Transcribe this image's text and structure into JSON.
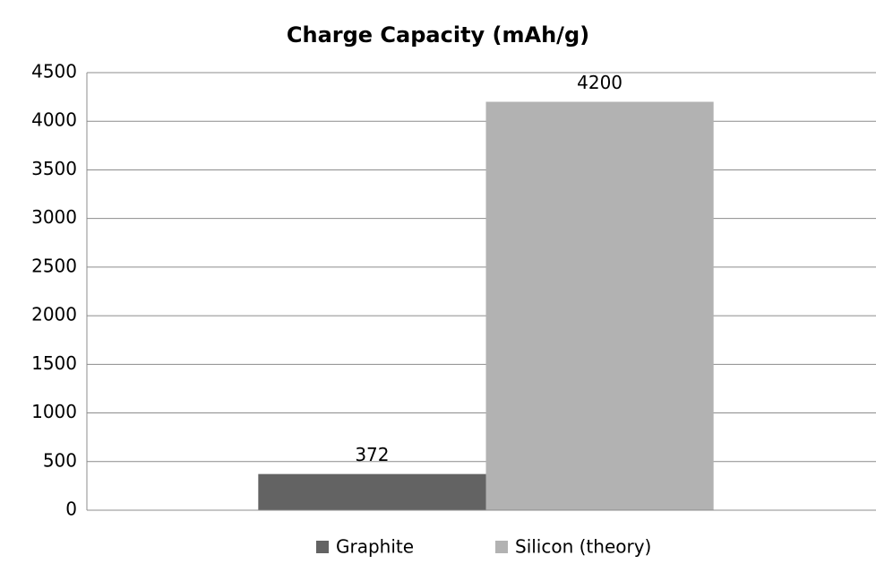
{
  "chart_data": {
    "type": "bar",
    "title": "Charge Capacity (mAh/g)",
    "categories": [
      null
    ],
    "series": [
      {
        "name": "Graphite",
        "color": "#636363",
        "values": [
          372
        ]
      },
      {
        "name": "Silicon (theory)",
        "color": "#b2b2b2",
        "values": [
          4200
        ]
      }
    ],
    "ylim": [
      0,
      4500
    ],
    "yticks": [
      0,
      500,
      1000,
      1500,
      2000,
      2500,
      3000,
      3500,
      4000,
      4500
    ],
    "grid": true,
    "legend": "bottom",
    "data_labels": true
  }
}
